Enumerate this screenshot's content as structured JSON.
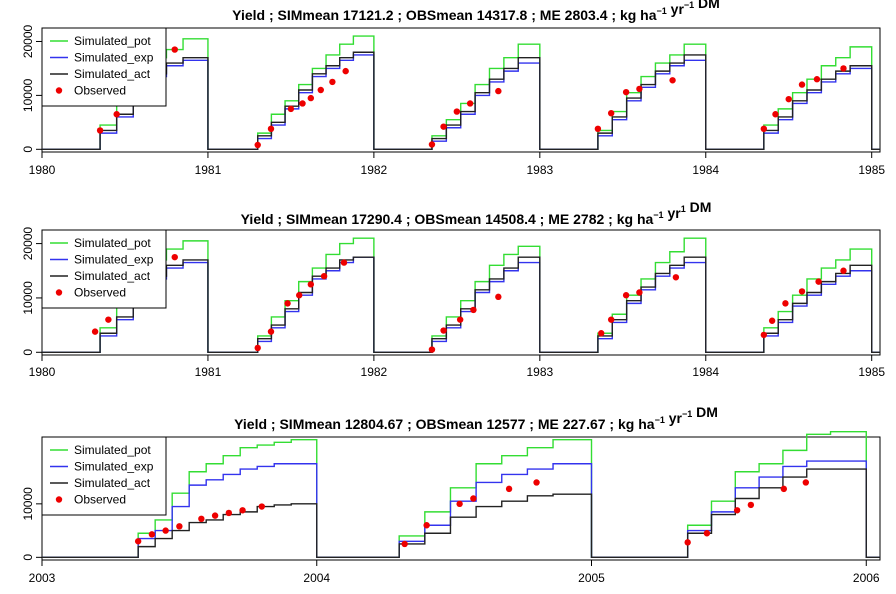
{
  "colors": {
    "pot": "#33dd33",
    "exp": "#3333ee",
    "act": "#222222",
    "obs": "#ee0000"
  },
  "chart_data": [
    {
      "type": "line",
      "title": "Yield ;  SIMmean 17121.2 ;  OBSmean 14317.8 ;  ME 2803.4 ;",
      "title_units_pre": "kg ha",
      "title_units_sup1": "−1",
      "title_units_mid": " yr",
      "title_units_sup2": "−1",
      "title_units_post": " DM",
      "xlabel": "",
      "ylabel": "",
      "xlim": [
        1980,
        1985.05
      ],
      "ylim": [
        -500,
        22500
      ],
      "x_ticks": [
        "1980",
        "1981",
        "1982",
        "1983",
        "1984",
        "1985"
      ],
      "x_tick_values": [
        1980,
        1981,
        1982,
        1983,
        1984,
        1985
      ],
      "y_ticks": [
        "0",
        "10000",
        "20000"
      ],
      "y_tick_values": [
        0,
        10000,
        20000
      ],
      "legend": [
        "Simulated_pot",
        "Simulated_exp",
        "Simulated_act",
        "Observed"
      ],
      "legend_position": "top-left",
      "seasons": [
        {
          "start": 1980.35,
          "end": 1981.0,
          "pot": [
            4500,
            9000,
            13000,
            17000,
            18500,
            20500
          ],
          "exp": [
            3000,
            6000,
            11000,
            13500,
            15500,
            16500
          ],
          "act": [
            3500,
            6500,
            11500,
            14000,
            16000,
            17000
          ]
        },
        {
          "start": 1981.3,
          "end": 1982.0,
          "pot": [
            3000,
            6500,
            9000,
            12000,
            15000,
            17500,
            19500,
            21000
          ],
          "exp": [
            2000,
            4500,
            7500,
            10500,
            13500,
            15000,
            16500,
            17500
          ],
          "act": [
            2500,
            5000,
            8000,
            11000,
            14000,
            15500,
            17000,
            18000
          ]
        },
        {
          "start": 1982.35,
          "end": 1983.0,
          "pot": [
            2500,
            5500,
            8500,
            12000,
            15000,
            17000,
            19500
          ],
          "exp": [
            1500,
            4000,
            6500,
            10000,
            12500,
            14500,
            16000
          ],
          "act": [
            2000,
            4500,
            7000,
            10500,
            13000,
            15000,
            17000
          ]
        },
        {
          "start": 1983.35,
          "end": 1984.0,
          "pot": [
            3500,
            7000,
            10500,
            13500,
            16000,
            17500,
            19500
          ],
          "exp": [
            2500,
            5500,
            9000,
            11500,
            14000,
            15500,
            16500
          ],
          "act": [
            3000,
            6000,
            9500,
            12000,
            14500,
            16000,
            17500
          ]
        },
        {
          "start": 1984.35,
          "end": 1985.0,
          "pot": [
            4500,
            7500,
            10500,
            13000,
            15500,
            17000,
            19000
          ],
          "exp": [
            3000,
            5500,
            8500,
            10500,
            12500,
            14000,
            15000
          ],
          "act": [
            3500,
            6000,
            9000,
            11000,
            13000,
            14500,
            15500
          ]
        }
      ],
      "observed": [
        [
          1980.35,
          3500
        ],
        [
          1980.45,
          6500
        ],
        [
          1980.55,
          12000
        ],
        [
          1980.65,
          14500
        ],
        [
          1980.72,
          16000
        ],
        [
          1980.8,
          18500
        ],
        [
          1981.3,
          800
        ],
        [
          1981.38,
          3800
        ],
        [
          1981.5,
          7500
        ],
        [
          1981.57,
          8500
        ],
        [
          1981.62,
          9500
        ],
        [
          1981.68,
          11000
        ],
        [
          1981.75,
          12500
        ],
        [
          1981.83,
          14500
        ],
        [
          1982.35,
          900
        ],
        [
          1982.42,
          4200
        ],
        [
          1982.5,
          7000
        ],
        [
          1982.58,
          8500
        ],
        [
          1982.75,
          10800
        ],
        [
          1983.35,
          3800
        ],
        [
          1983.43,
          6700
        ],
        [
          1983.52,
          10600
        ],
        [
          1983.6,
          11200
        ],
        [
          1983.8,
          12800
        ],
        [
          1984.35,
          3800
        ],
        [
          1984.42,
          6500
        ],
        [
          1984.5,
          9300
        ],
        [
          1984.58,
          12000
        ],
        [
          1984.67,
          13000
        ],
        [
          1984.83,
          15000
        ]
      ]
    },
    {
      "type": "line",
      "title": "Yield ;  SIMmean 17290.4 ;  OBSmean 14508.4 ;  ME 2782 ;",
      "title_units_pre": "kg ha",
      "title_units_sup1": "−1",
      "title_units_mid": " yr",
      "title_units_sup2": "1",
      "title_units_post": " DM",
      "xlabel": "",
      "ylabel": "",
      "xlim": [
        1980,
        1985.05
      ],
      "ylim": [
        -500,
        22500
      ],
      "x_ticks": [
        "1980",
        "1981",
        "1982",
        "1983",
        "1984",
        "1985"
      ],
      "x_tick_values": [
        1980,
        1981,
        1982,
        1983,
        1984,
        1985
      ],
      "y_ticks": [
        "0",
        "10000",
        "20000"
      ],
      "y_tick_values": [
        0,
        10000,
        20000
      ],
      "legend": [
        "Simulated_pot",
        "Simulated_exp",
        "Simulated_act",
        "Observed"
      ],
      "legend_position": "top-left",
      "seasons": [
        {
          "start": 1980.35,
          "end": 1981.0,
          "pot": [
            4500,
            9000,
            13000,
            17000,
            19000,
            20500
          ],
          "exp": [
            3000,
            6000,
            11000,
            13500,
            15500,
            16500
          ],
          "act": [
            3500,
            6500,
            11500,
            14000,
            16000,
            17000
          ]
        },
        {
          "start": 1981.3,
          "end": 1982.0,
          "pot": [
            3000,
            6500,
            9500,
            13000,
            15500,
            18000,
            20000,
            21000
          ],
          "exp": [
            2000,
            4500,
            7500,
            10500,
            13500,
            15000,
            16500,
            17500
          ],
          "act": [
            2500,
            5000,
            8000,
            11000,
            14000,
            15500,
            17000,
            17500
          ]
        },
        {
          "start": 1982.35,
          "end": 1983.0,
          "pot": [
            3000,
            6500,
            9500,
            13000,
            16000,
            18000,
            19500
          ],
          "exp": [
            2000,
            4500,
            7500,
            11000,
            13000,
            15000,
            16500
          ],
          "act": [
            2500,
            5000,
            8000,
            11500,
            13500,
            15500,
            17500
          ]
        },
        {
          "start": 1983.35,
          "end": 1984.0,
          "pot": [
            3500,
            7000,
            10500,
            13500,
            16500,
            18500,
            21000
          ],
          "exp": [
            2500,
            5500,
            9000,
            11500,
            14000,
            15500,
            16500
          ],
          "act": [
            3000,
            6000,
            9500,
            12000,
            14500,
            16000,
            17500
          ]
        },
        {
          "start": 1984.35,
          "end": 1985.0,
          "pot": [
            4500,
            7500,
            10500,
            13500,
            15500,
            17000,
            19000
          ],
          "exp": [
            3000,
            5500,
            8500,
            10500,
            12500,
            14000,
            15000
          ],
          "act": [
            3500,
            6000,
            9000,
            11000,
            13000,
            14500,
            16000
          ]
        }
      ],
      "observed": [
        [
          1980.32,
          3800
        ],
        [
          1980.4,
          6000
        ],
        [
          1980.52,
          12000
        ],
        [
          1980.6,
          13500
        ],
        [
          1980.68,
          15000
        ],
        [
          1980.8,
          17500
        ],
        [
          1981.3,
          800
        ],
        [
          1981.38,
          3800
        ],
        [
          1981.48,
          9000
        ],
        [
          1981.55,
          10500
        ],
        [
          1981.62,
          12500
        ],
        [
          1981.7,
          14000
        ],
        [
          1981.82,
          16500
        ],
        [
          1982.35,
          500
        ],
        [
          1982.42,
          4000
        ],
        [
          1982.52,
          6000
        ],
        [
          1982.6,
          7800
        ],
        [
          1982.75,
          10200
        ],
        [
          1983.37,
          3500
        ],
        [
          1983.43,
          6000
        ],
        [
          1983.52,
          10500
        ],
        [
          1983.6,
          11000
        ],
        [
          1983.82,
          13800
        ],
        [
          1984.35,
          3200
        ],
        [
          1984.4,
          5800
        ],
        [
          1984.48,
          9000
        ],
        [
          1984.58,
          11200
        ],
        [
          1984.68,
          13000
        ],
        [
          1984.83,
          15000
        ]
      ]
    },
    {
      "type": "line",
      "title": "Yield ;  SIMmean 12804.67 ;  OBSmean 12577 ;  ME 227.67 ;",
      "title_units_pre": "kg ha",
      "title_units_sup1": "−1",
      "title_units_mid": " yr",
      "title_units_sup2": "−1",
      "title_units_post": " DM",
      "xlabel": "",
      "ylabel": "",
      "xlim": [
        2003,
        2006.05
      ],
      "ylim": [
        -500,
        22500
      ],
      "x_ticks": [
        "2003",
        "2004",
        "2005",
        "2006"
      ],
      "x_tick_values": [
        2003,
        2004,
        2005,
        2006
      ],
      "y_ticks": [
        "0",
        "10000"
      ],
      "y_tick_values": [
        0,
        10000
      ],
      "legend": [
        "Simulated_pot",
        "Simulated_exp",
        "Simulated_act",
        "Observed"
      ],
      "legend_position": "top-left",
      "seasons": [
        {
          "start": 2003.35,
          "end": 2004.0,
          "pot": [
            4500,
            7000,
            12000,
            16000,
            17500,
            19000,
            20500,
            21000,
            21500,
            22000
          ],
          "exp": [
            3500,
            5000,
            9500,
            13500,
            14500,
            15500,
            16500,
            17000,
            17500,
            17500
          ],
          "act": [
            2000,
            3500,
            5000,
            6500,
            7000,
            8000,
            8500,
            9500,
            9800,
            10000
          ]
        },
        {
          "start": 2004.3,
          "end": 2005.0,
          "pot": [
            4000,
            8500,
            13000,
            17500,
            19000,
            20500,
            22000
          ],
          "exp": [
            3000,
            6000,
            10500,
            14000,
            15500,
            16500,
            17500
          ],
          "act": [
            2500,
            4500,
            7500,
            9500,
            10500,
            11500,
            11800
          ]
        },
        {
          "start": 2005.35,
          "end": 2006.0,
          "pot": [
            6000,
            10500,
            16000,
            17500,
            20000,
            23000,
            23500
          ],
          "exp": [
            5000,
            8500,
            13000,
            15000,
            17000,
            18000,
            18000
          ],
          "act": [
            4500,
            8000,
            11000,
            13000,
            15000,
            16500,
            16500
          ]
        }
      ],
      "observed": [
        [
          2003.35,
          3000
        ],
        [
          2003.4,
          4300
        ],
        [
          2003.45,
          5000
        ],
        [
          2003.5,
          5800
        ],
        [
          2003.58,
          7200
        ],
        [
          2003.63,
          7800
        ],
        [
          2003.68,
          8300
        ],
        [
          2003.73,
          8800
        ],
        [
          2003.8,
          9500
        ],
        [
          2004.32,
          2500
        ],
        [
          2004.4,
          6000
        ],
        [
          2004.52,
          10000
        ],
        [
          2004.57,
          11000
        ],
        [
          2004.7,
          12800
        ],
        [
          2004.8,
          14000
        ],
        [
          2005.35,
          2800
        ],
        [
          2005.42,
          4500
        ],
        [
          2005.53,
          8800
        ],
        [
          2005.58,
          9800
        ],
        [
          2005.7,
          12800
        ],
        [
          2005.78,
          14000
        ]
      ]
    }
  ]
}
